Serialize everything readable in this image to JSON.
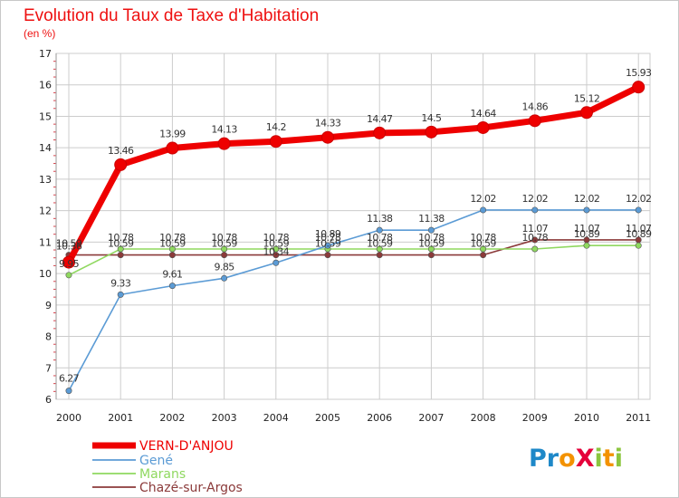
{
  "title": "Evolution du Taux de Taxe d'Habitation",
  "subtitle": "(en %)",
  "brand": {
    "text": "ProXiti",
    "letters": [
      "P",
      "r",
      "o",
      "X",
      "i",
      "t",
      "i"
    ],
    "colors": [
      "#1e88c8",
      "#1e88c8",
      "#f39200",
      "#e5003a",
      "#8cc63f",
      "#f39200",
      "#8cc63f"
    ]
  },
  "colors": {
    "background": "#ffffff",
    "grid": "#cccccc",
    "frame": "#c8c8c8"
  },
  "chart_data": {
    "type": "line",
    "title": "Evolution du Taux de Taxe d'Habitation",
    "xlabel": "",
    "ylabel": "(en %)",
    "ylim": [
      6,
      17
    ],
    "grid": true,
    "legend_position": "bottom-left",
    "categories": [
      "2000",
      "2001",
      "2002",
      "2003",
      "2004",
      "2005",
      "2006",
      "2007",
      "2008",
      "2009",
      "2010",
      "2011"
    ],
    "yticks": [
      6,
      7,
      8,
      9,
      10,
      11,
      12,
      13,
      14,
      15,
      16,
      17
    ],
    "series": [
      {
        "name": "VERN-D'ANJOU",
        "color": "#ee0000",
        "values": [
          10.36,
          13.46,
          13.99,
          14.13,
          14.2,
          14.33,
          14.47,
          14.5,
          14.64,
          14.86,
          15.12,
          15.93
        ],
        "labels": [
          "10.36",
          "13.46",
          "13.99",
          "14.13",
          "14.2",
          "14.33",
          "14.47",
          "14.5",
          "14.64",
          "14.86",
          "15.12",
          "15.93"
        ]
      },
      {
        "name": "Gené",
        "color": "#5b9bd5",
        "values": [
          6.27,
          9.33,
          9.61,
          9.85,
          10.34,
          10.89,
          11.38,
          11.38,
          12.02,
          12.02,
          12.02,
          12.02
        ],
        "labels": [
          "6.27",
          "9.33",
          "9.61",
          "9.85",
          "10.34",
          "10.89",
          "11.38",
          "11.38",
          "12.02",
          "12.02",
          "12.02",
          "12.02"
        ]
      },
      {
        "name": "Marans",
        "color": "#8fd85f",
        "values": [
          9.95,
          10.78,
          10.78,
          10.78,
          10.78,
          10.78,
          10.78,
          10.78,
          10.78,
          10.78,
          10.89,
          10.89
        ],
        "labels": [
          "9.95",
          "10.78",
          "10.78",
          "10.78",
          "10.78",
          "10.78",
          "10.78",
          "10.78",
          "10.78",
          "10.78",
          "10.89",
          "10.89"
        ]
      },
      {
        "name": "Chazé-sur-Argos",
        "color": "#8b3a3a",
        "values": [
          10.59,
          10.59,
          10.59,
          10.59,
          10.59,
          10.59,
          10.59,
          10.59,
          10.59,
          11.07,
          11.07,
          11.07
        ],
        "labels": [
          "10.59",
          "10.59",
          "10.59",
          "10.59",
          "10.59",
          "10.59",
          "10.59",
          "10.59",
          "10.59",
          "11.07",
          "11.07",
          "11.07"
        ]
      }
    ]
  }
}
